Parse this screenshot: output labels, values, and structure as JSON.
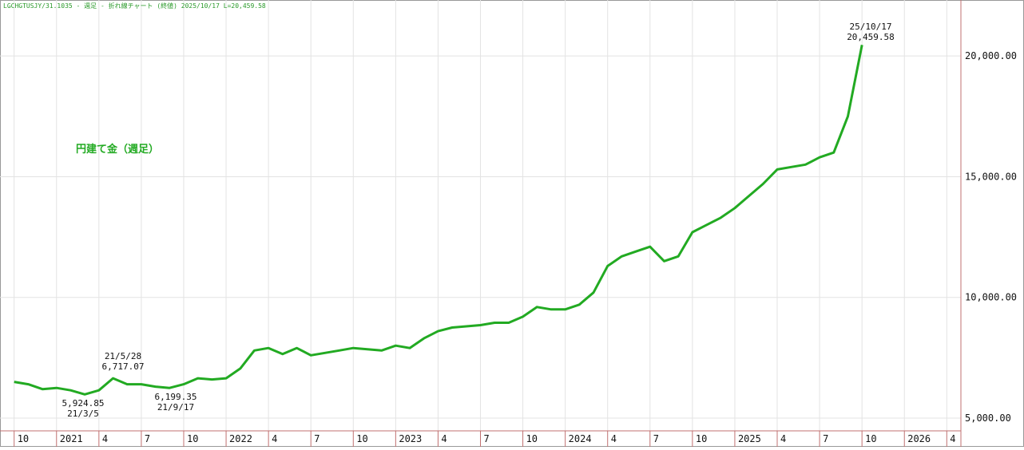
{
  "chart_data": {
    "type": "line",
    "title": "LGCHGTUSJY/31.1035 - 週足 - 折れ線チャート (終値)  2025/10/17 L=20,459.58",
    "x": [
      "2020-10",
      "2020-11",
      "2020-12",
      "2021-01",
      "2021-02",
      "2021-03",
      "2021-04",
      "2021-05",
      "2021-06",
      "2021-07",
      "2021-08",
      "2021-09",
      "2021-10",
      "2021-11",
      "2021-12",
      "2022-01",
      "2022-02",
      "2022-03",
      "2022-04",
      "2022-05",
      "2022-06",
      "2022-07",
      "2022-08",
      "2022-09",
      "2022-10",
      "2022-11",
      "2022-12",
      "2023-01",
      "2023-02",
      "2023-03",
      "2023-04",
      "2023-05",
      "2023-06",
      "2023-07",
      "2023-08",
      "2023-09",
      "2023-10",
      "2023-11",
      "2023-12",
      "2024-01",
      "2024-02",
      "2024-03",
      "2024-04",
      "2024-05",
      "2024-06",
      "2024-07",
      "2024-08",
      "2024-09",
      "2024-10",
      "2024-11",
      "2024-12",
      "2025-01",
      "2025-02",
      "2025-03",
      "2025-04",
      "2025-05",
      "2025-06",
      "2025-07",
      "2025-08",
      "2025-09",
      "2025-10"
    ],
    "series": [
      {
        "name": "円建て金（週足）",
        "color": "#22aa22",
        "values": [
          6500,
          6400,
          6200,
          6250,
          6150,
          5980,
          6150,
          6650,
          6400,
          6400,
          6300,
          6250,
          6400,
          6650,
          6600,
          6650,
          7050,
          7800,
          7900,
          7650,
          7900,
          7600,
          7700,
          7800,
          7900,
          7850,
          7800,
          8000,
          7900,
          8300,
          8600,
          8750,
          8800,
          8850,
          8950,
          8950,
          9200,
          9600,
          9500,
          9500,
          9700,
          10200,
          11300,
          11700,
          11900,
          12100,
          11500,
          11700,
          12700,
          13000,
          13300,
          13700,
          14200,
          14700,
          15300,
          15400,
          15500,
          15800,
          16000,
          17500,
          20459.58
        ]
      }
    ],
    "xlim": [
      "2020-09",
      "2026-05"
    ],
    "xticks": [
      {
        "value": "2020-10",
        "label": "10"
      },
      {
        "value": "2021-01",
        "label": "2021"
      },
      {
        "value": "2021-04",
        "label": "4"
      },
      {
        "value": "2021-07",
        "label": "7"
      },
      {
        "value": "2021-10",
        "label": "10"
      },
      {
        "value": "2022-01",
        "label": "2022"
      },
      {
        "value": "2022-04",
        "label": "4"
      },
      {
        "value": "2022-07",
        "label": "7"
      },
      {
        "value": "2022-10",
        "label": "10"
      },
      {
        "value": "2023-01",
        "label": "2023"
      },
      {
        "value": "2023-04",
        "label": "4"
      },
      {
        "value": "2023-07",
        "label": "7"
      },
      {
        "value": "2023-10",
        "label": "10"
      },
      {
        "value": "2024-01",
        "label": "2024"
      },
      {
        "value": "2024-04",
        "label": "4"
      },
      {
        "value": "2024-07",
        "label": "7"
      },
      {
        "value": "2024-10",
        "label": "10"
      },
      {
        "value": "2025-01",
        "label": "2025"
      },
      {
        "value": "2025-04",
        "label": "4"
      },
      {
        "value": "2025-07",
        "label": "7"
      },
      {
        "value": "2025-10",
        "label": "10"
      },
      {
        "value": "2026-01",
        "label": "2026"
      },
      {
        "value": "2026-04",
        "label": "4"
      }
    ],
    "ylim": [
      4470,
      22320
    ],
    "yticks": [
      {
        "value": 5000,
        "label": "5,000.00"
      },
      {
        "value": 10000,
        "label": "10,000.00"
      },
      {
        "value": 15000,
        "label": "15,000.00"
      },
      {
        "value": 20000,
        "label": "20,000.00"
      }
    ],
    "grid": true,
    "annotations": [
      {
        "date": "25/10/17",
        "value": "20,459.58"
      },
      {
        "date": "21/5/28",
        "value": "6,717.07"
      },
      {
        "value": "5,924.85",
        "date": "21/3/5"
      },
      {
        "value": "6,199.35",
        "date": "21/9/17"
      }
    ]
  }
}
